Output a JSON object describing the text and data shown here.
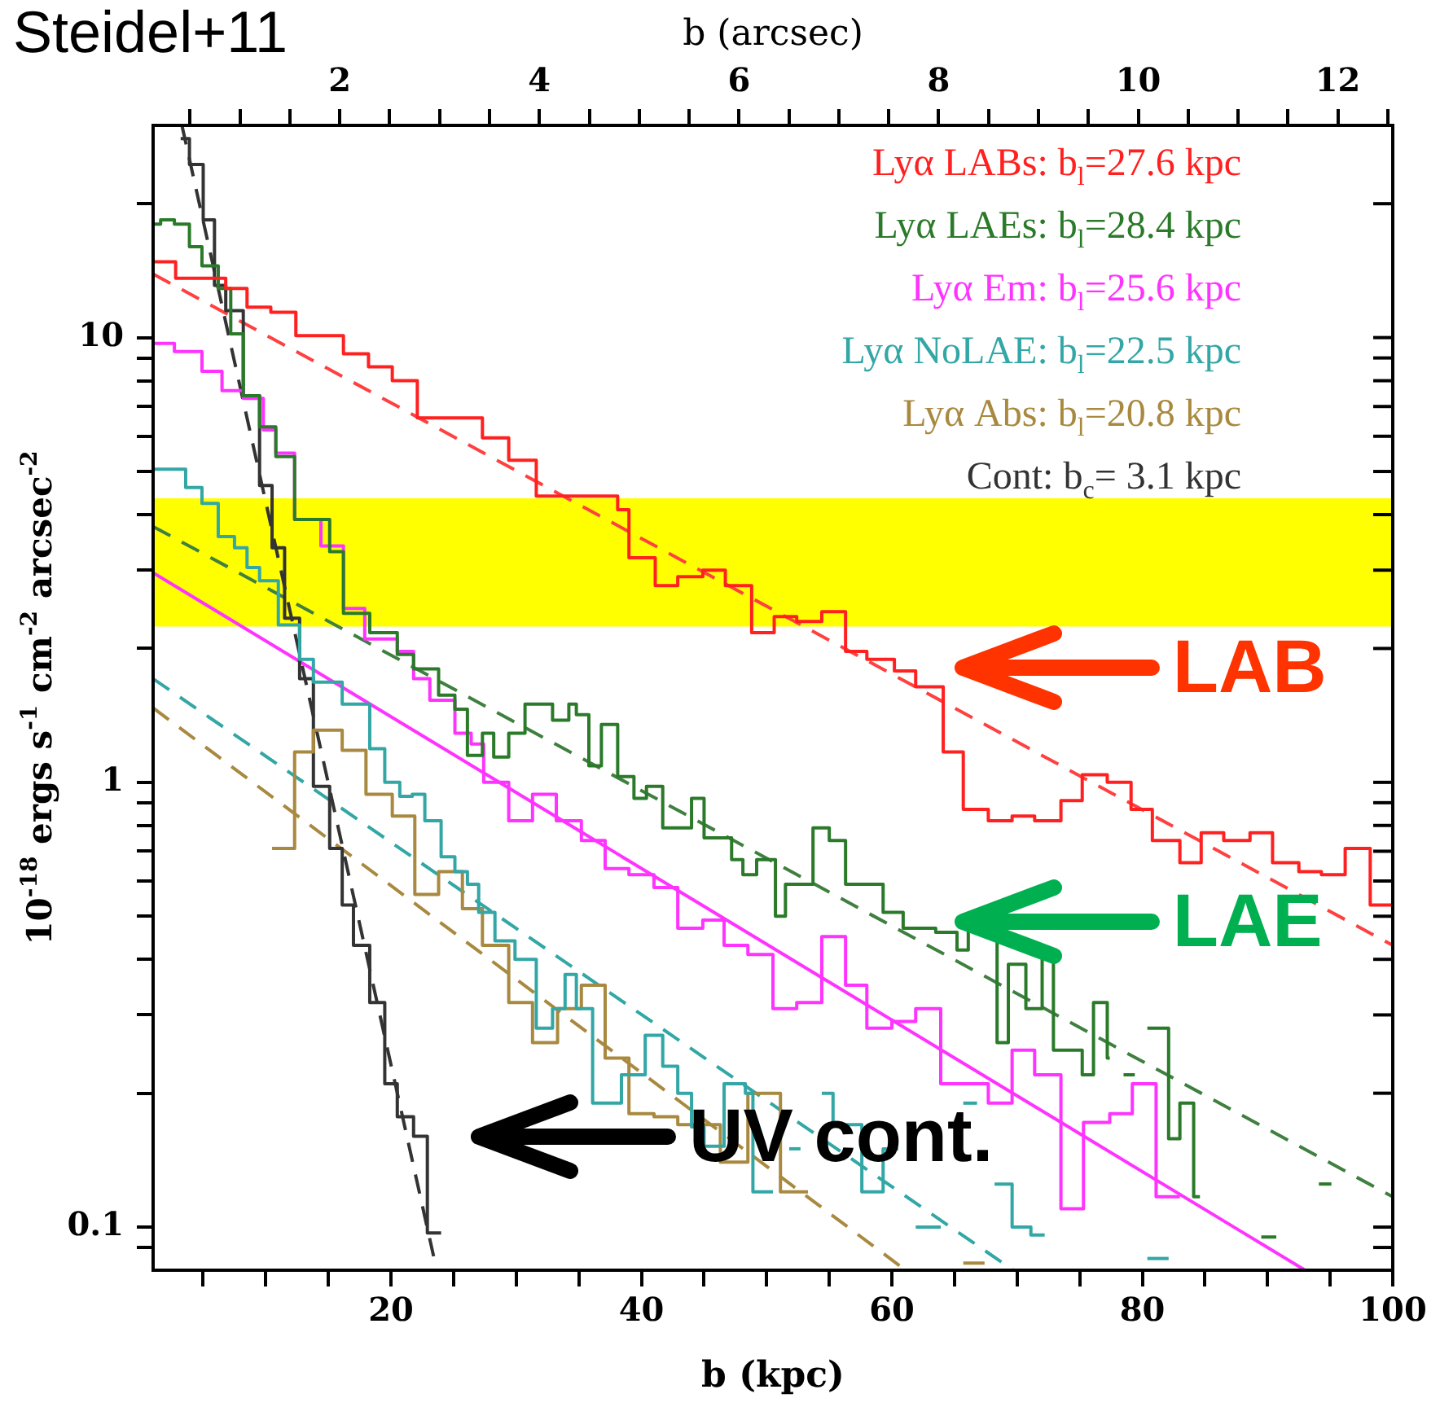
{
  "chart_data": {
    "type": "step",
    "title": "Steidel+11",
    "xlabel": "b (kpc)",
    "x2label": "b (arcsec)",
    "ylabel": "10$^{-18}$ ergs s$^{-1}$ cm$^{-2}$ arcsec$^{-2}$",
    "log": "y",
    "legend": "top right",
    "marker": "none",
    "xlim": [
      1,
      100
    ],
    "xticks": [
      {
        "value": 5,
        "label": null
      },
      {
        "value": 10,
        "label": null
      },
      {
        "value": 15,
        "label": null
      },
      20,
      {
        "value": 25,
        "label": null
      },
      {
        "value": 30,
        "label": null
      },
      {
        "value": 35,
        "label": null
      },
      40,
      {
        "value": 45,
        "label": null
      },
      {
        "value": 50,
        "label": null
      },
      {
        "value": 55,
        "label": null
      },
      60,
      {
        "value": 65,
        "label": null
      },
      {
        "value": 70,
        "label": null
      },
      {
        "value": 75,
        "label": null
      },
      80,
      {
        "value": 85,
        "label": null
      },
      {
        "value": 90,
        "label": null
      },
      {
        "value": 95,
        "label": null
      },
      100
    ],
    "x2lim": [
      0.13,
      12.55
    ],
    "x2ticks": [
      {
        "value": 0.5,
        "label": null
      },
      {
        "value": 1,
        "label": null
      },
      {
        "value": 1.5,
        "label": null
      },
      2,
      {
        "value": 2.5,
        "label": null
      },
      {
        "value": 3,
        "label": null
      },
      {
        "value": 3.5,
        "label": null
      },
      4,
      {
        "value": 4.5,
        "label": null
      },
      {
        "value": 5,
        "label": null
      },
      {
        "value": 5.5,
        "label": null
      },
      6,
      {
        "value": 6.5,
        "label": null
      },
      {
        "value": 7,
        "label": null
      },
      {
        "value": 7.5,
        "label": null
      },
      8,
      {
        "value": 8.5,
        "label": null
      },
      {
        "value": 9,
        "label": null
      },
      {
        "value": 9.5,
        "label": null
      },
      10,
      {
        "value": 10.5,
        "label": null
      },
      {
        "value": 11,
        "label": null
      },
      {
        "value": 11.5,
        "label": null
      },
      12,
      {
        "value": 12.5,
        "label": null
      }
    ],
    "ylim": [
      0.08,
      30
    ],
    "yticks": [
      {
        "value": 0.09,
        "label": null
      },
      0.1,
      {
        "value": 0.2,
        "label": null
      },
      {
        "value": 0.3,
        "label": null
      },
      {
        "value": 0.4,
        "label": null
      },
      {
        "value": 0.5,
        "label": null
      },
      {
        "value": 0.6,
        "label": null
      },
      {
        "value": 0.7,
        "label": null
      },
      {
        "value": 0.8,
        "label": null
      },
      {
        "value": 0.9,
        "label": null
      },
      1,
      {
        "value": 2,
        "label": null
      },
      {
        "value": 3,
        "label": null
      },
      {
        "value": 4,
        "label": null
      },
      {
        "value": 5,
        "label": null
      },
      {
        "value": 6,
        "label": null
      },
      {
        "value": 7,
        "label": null
      },
      {
        "value": 8,
        "label": null
      },
      {
        "value": 9,
        "label": null
      },
      10,
      {
        "value": 20,
        "label": null
      }
    ],
    "bands": [
      {
        "axis": "y",
        "from": 2.24,
        "to": 4.35,
        "color": "#ffff00"
      }
    ],
    "annotations": [
      "LAB",
      "LAE",
      "UV cont."
    ],
    "series": [
      {
        "name": "Lyα LABs: b$_{l}$=27.6 kpc",
        "color": "#ff2020",
        "x": [
          1,
          2.8,
          6.8,
          8.5,
          10.4,
          12.4,
          16.2,
          18.2,
          20.1,
          22.1,
          27.3,
          29.4,
          31.6,
          38.1,
          39,
          41.1,
          42.9,
          44.9,
          46.7,
          48.8,
          50.6,
          52.4,
          54.4,
          56.3,
          58,
          60.2,
          61.9,
          64.1,
          65.7,
          67.7,
          69.6,
          71.4,
          73.5,
          75.2,
          77.2,
          79.1,
          80.8,
          83,
          84.7,
          86.5,
          88.6,
          90.4,
          92.5,
          94.3,
          96.2,
          98.2,
          100
        ],
        "values": [
          14.8,
          13.6,
          12.9,
          11.7,
          11.4,
          10.1,
          9.2,
          8.6,
          8.0,
          6.6,
          5.95,
          5.3,
          4.4,
          4.1,
          3.2,
          2.77,
          2.9,
          3.0,
          2.77,
          2.17,
          2.36,
          2.3,
          2.42,
          1.97,
          1.89,
          1.78,
          1.64,
          1.17,
          0.87,
          0.82,
          0.84,
          0.82,
          0.91,
          1.04,
          1.0,
          0.87,
          0.74,
          0.66,
          0.77,
          0.74,
          0.77,
          0.66,
          0.63,
          0.62,
          0.71,
          0.53,
          0.53
        ]
      },
      {
        "name": "Lyα LAEs: b$_{l}$=28.4 kpc",
        "color": "#2a7a2a",
        "x": [
          1,
          1.6,
          2.7,
          3.9,
          4.9,
          6.2,
          7.2,
          8.2,
          9.5,
          10.8,
          12.3,
          15.1,
          16.2,
          18.3,
          20.5,
          21.8,
          23.8,
          25.1,
          26.1,
          27.3,
          28.2,
          29.4,
          30.7,
          32.9,
          34.2,
          34.8,
          35.8,
          36.8,
          38.1,
          39.4,
          40.4,
          41.7,
          44.0,
          45.0,
          47.2,
          48.1,
          49.2,
          50.7,
          51.5,
          53.7,
          55.0,
          56.3,
          59.3,
          60.9,
          63.5,
          65.2,
          66.1,
          68.4,
          69.3,
          70.7,
          72.0,
          72.9,
          75.2,
          76.1,
          77.2,
          77.4,
          78.5,
          79.4,
          80.4,
          82.1,
          83.0,
          84.1,
          84.6,
          89.5,
          90.7,
          94.1,
          95.1
        ],
        "values": [
          18.0,
          18.4,
          18.0,
          16,
          14.5,
          12.9,
          10.2,
          7.4,
          6.3,
          5.4,
          3.9,
          3.3,
          2.4,
          2.17,
          1.94,
          1.8,
          1.57,
          1.46,
          1.15,
          1.29,
          1.14,
          1.29,
          1.5,
          1.38,
          1.5,
          1.42,
          1.09,
          1.35,
          1.03,
          0.92,
          0.98,
          0.79,
          0.92,
          0.75,
          0.67,
          0.62,
          0.67,
          0.5,
          0.59,
          0.79,
          0.74,
          0.59,
          0.51,
          0.47,
          0.46,
          0.42,
          0.47,
          0.26,
          0.39,
          0.31,
          0.41,
          0.25,
          0.22,
          0.32,
          0.24,
          0.24,
          0.22,
          0.22,
          0.28,
          0.158,
          0.19,
          0.117,
          0.117,
          0.095,
          0.095,
          0.125,
          0.125
        ]
      },
      {
        "name": "Lyα Em: b$_{l}$=25.6 kpc",
        "color": "#ff33ff",
        "x": [
          1,
          2.7,
          4.9,
          6.5,
          8.2,
          9.8,
          10.8,
          12.3,
          14.4,
          16.2,
          17.9,
          20.5,
          21.8,
          23.1,
          25.1,
          26.4,
          27.4,
          29.4,
          31.3,
          33.2,
          35.2,
          37.1,
          39,
          41,
          42.9,
          44.9,
          46.6,
          48.5,
          50.5,
          52.4,
          54.4,
          56.3,
          58,
          60,
          61.9,
          63.9,
          67.7,
          69.6,
          71.4,
          73.5,
          75.3,
          77.4,
          79.2,
          81.1,
          83
        ],
        "values": [
          9.7,
          9.3,
          8.4,
          7.6,
          7.3,
          6.2,
          5.5,
          3.9,
          3.4,
          2.46,
          2.1,
          1.97,
          1.71,
          1.53,
          1.29,
          1.22,
          1.0,
          0.82,
          0.94,
          0.82,
          0.74,
          0.64,
          0.62,
          0.58,
          0.47,
          0.49,
          0.43,
          0.41,
          0.31,
          0.32,
          0.45,
          0.35,
          0.28,
          0.29,
          0.31,
          0.21,
          0.19,
          0.25,
          0.22,
          0.11,
          0.172,
          0.18,
          0.21,
          0.117,
          0.117
        ]
      },
      {
        "name": "Lyα NoLAE: b$_{l}$=22.5 kpc",
        "color": "#33a6a6",
        "x": [
          1,
          3.6,
          4.9,
          6.2,
          7.5,
          8.5,
          9.5,
          11.0,
          12.7,
          13.8,
          16.1,
          18.3,
          19.5,
          20.7,
          21.7,
          22.7,
          24.0,
          25.1,
          26.1,
          27.0,
          28.3,
          29.9,
          31.6,
          32.9,
          33.9,
          34.8,
          36.1,
          38.4,
          40.3,
          41.7,
          42.9,
          44.0,
          45.0,
          46.6,
          48.3,
          48.9,
          50.5,
          51.8,
          52.7,
          54.4,
          55.3,
          57.6,
          59.3,
          60.5,
          61.9,
          63.9,
          65.7,
          66.8,
          68.2,
          69.6,
          71.1,
          72.2,
          80.4,
          82.1
        ],
        "values": [
          5.06,
          4.6,
          4.24,
          3.57,
          3.37,
          3.04,
          2.84,
          2.26,
          1.89,
          1.68,
          1.5,
          1.19,
          1.0,
          0.93,
          0.94,
          0.82,
          0.68,
          0.63,
          0.59,
          0.51,
          0.44,
          0.4,
          0.28,
          0.31,
          0.37,
          0.31,
          0.19,
          0.22,
          0.27,
          0.23,
          0.2,
          0.168,
          0.152,
          0.21,
          0.2,
          0.12,
          0.12,
          0.15,
          0.15,
          0.2,
          0.17,
          0.12,
          0.15,
          0.15,
          0.1,
          0.1,
          0.19,
          0.19,
          0.125,
          0.1,
          0.096,
          0.096,
          0.085,
          0.085
        ]
      },
      {
        "name": "Lyα Abs: b$_{l}$=20.8 kpc",
        "color": "#a8893f",
        "x": [
          10.5,
          12.3,
          13.8,
          16.1,
          18.0,
          20.1,
          21.9,
          23.8,
          25.7,
          27.3,
          29.4,
          31.3,
          33.3,
          35.2,
          37.1,
          39.0,
          41.0,
          42.9,
          46.3,
          48.5,
          51.1,
          53.3,
          65.7,
          67.4
        ],
        "values": [
          0.71,
          1.17,
          1.31,
          1.18,
          0.94,
          0.84,
          0.56,
          0.63,
          0.52,
          0.43,
          0.32,
          0.26,
          0.31,
          0.35,
          0.24,
          0.18,
          0.177,
          0.17,
          0.14,
          0.2,
          0.12,
          0.12,
          0.083,
          0.083
        ]
      },
      {
        "name": "Cont: b$_{c}$= 3.1 kpc",
        "color": "#333333",
        "x": [
          3.2,
          3.9,
          5.0,
          5.9,
          6.8,
          8.2,
          9.5,
          10.5,
          11.5,
          12.7,
          13.8,
          15.1,
          16.1,
          17.0,
          18.3,
          19.5,
          20.5,
          21.8,
          22.9,
          24.0
        ],
        "values": [
          28,
          24.5,
          18.4,
          13.1,
          11.5,
          7.4,
          4.65,
          3.37,
          2.34,
          1.71,
          0.98,
          0.71,
          0.53,
          0.43,
          0.32,
          0.21,
          0.177,
          0.16,
          0.097,
          0.097
        ]
      },
      {
        "type": "line",
        "color": "#ff4040",
        "line_style": "dashed",
        "x": [
          1,
          100
        ],
        "values": [
          13.9,
          0.43
        ]
      },
      {
        "type": "line",
        "color": "#3f7f3f",
        "line_style": "dashed",
        "x": [
          1,
          100
        ],
        "values": [
          3.76,
          0.117
        ]
      },
      {
        "type": "line",
        "color": "#ff33ff",
        "line_style": "solid",
        "x": [
          1,
          93
        ],
        "values": [
          2.96,
          0.08
        ]
      },
      {
        "type": "line",
        "color": "#33a6a6",
        "line_style": "dashed",
        "x": [
          1,
          69.7
        ],
        "values": [
          1.71,
          0.08
        ]
      },
      {
        "type": "line",
        "color": "#a8893f",
        "line_style": "dashed",
        "x": [
          1,
          61.1
        ],
        "values": [
          1.47,
          0.08
        ]
      },
      {
        "type": "line",
        "color": "#333333",
        "line_style": "dashed",
        "x": [
          3.3,
          23.4
        ],
        "values": [
          30,
          0.086
        ]
      }
    ]
  }
}
